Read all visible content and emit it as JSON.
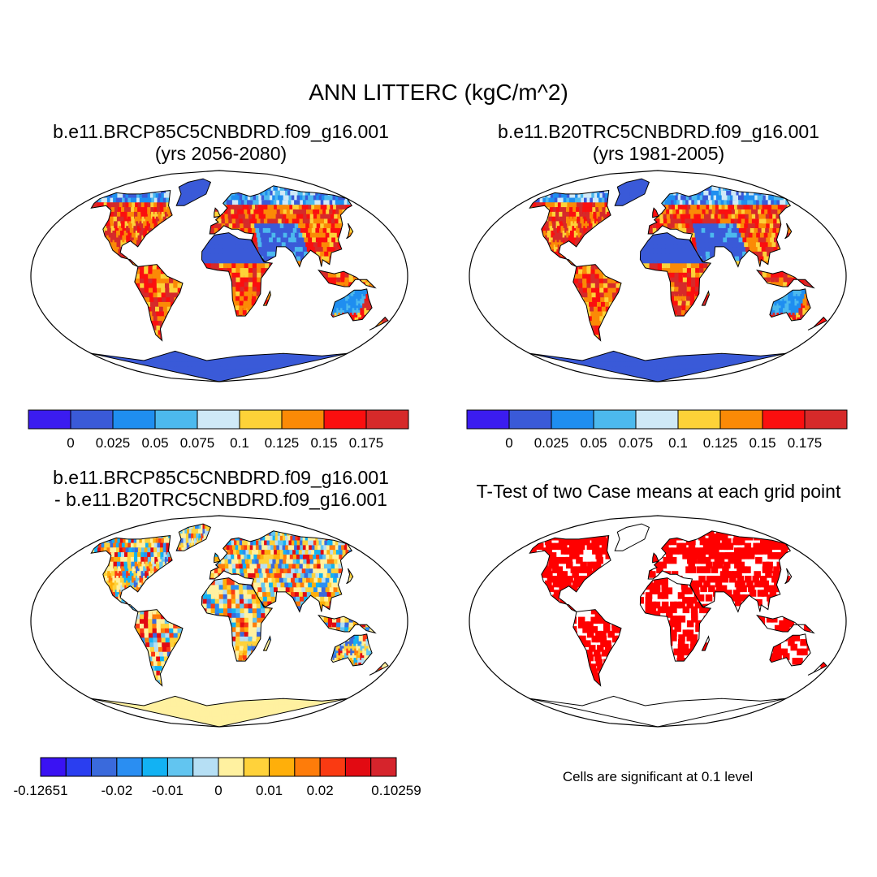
{
  "figure": {
    "title": "ANN LITTERC (kgC/m^2)"
  },
  "panels": [
    {
      "id": "test-case",
      "title_lines": [
        "b.e11.BRCP85C5CNBDRD.f09_g16.001",
        "(yrs 2056-2080)"
      ],
      "colorbar": {
        "colors": [
          "#3b1cf0",
          "#3a5ad8",
          "#1f8ef0",
          "#4cb9ee",
          "#cfe9f7",
          "#fdd238",
          "#fb8a06",
          "#fb0f0f",
          "#d62a2a"
        ],
        "labels": [
          "0",
          "0.025",
          "0.05",
          "0.075",
          "0.1",
          "0.125",
          "0.15",
          "0.175"
        ]
      }
    },
    {
      "id": "control-case",
      "title_lines": [
        "b.e11.B20TRC5CNBDRD.f09_g16.001",
        "(yrs 1981-2005)"
      ],
      "colorbar": {
        "colors": [
          "#3b1cf0",
          "#3a5ad8",
          "#1f8ef0",
          "#4cb9ee",
          "#cfe9f7",
          "#fdd238",
          "#fb8a06",
          "#fb0f0f",
          "#d62a2a"
        ],
        "labels": [
          "0",
          "0.025",
          "0.05",
          "0.075",
          "0.1",
          "0.125",
          "0.15",
          "0.175"
        ]
      }
    },
    {
      "id": "difference",
      "title_lines": [
        "b.e11.BRCP85C5CNBDRD.f09_g16.001",
        "- b.e11.B20TRC5CNBDRD.f09_g16.001"
      ],
      "colorbar": {
        "colors": [
          "#3a12f3",
          "#2a3ef0",
          "#3a6adc",
          "#2a8ef2",
          "#12b2f3",
          "#62c5f0",
          "#b6dff4",
          "#fff1a0",
          "#ffd23a",
          "#ffaf0a",
          "#fe7c0a",
          "#fa3a12",
          "#e20a12",
          "#d6242c"
        ],
        "labels": [
          "-0.12651",
          "-0.02",
          "-0.01",
          "0",
          "0.01",
          "0.02",
          "0.10259"
        ]
      }
    },
    {
      "id": "ttest",
      "title_lines": [
        "T-Test of two Case means at each grid point"
      ],
      "note": "Cells are significant at 0.1 level",
      "significant_color": "#ff0000"
    }
  ]
}
